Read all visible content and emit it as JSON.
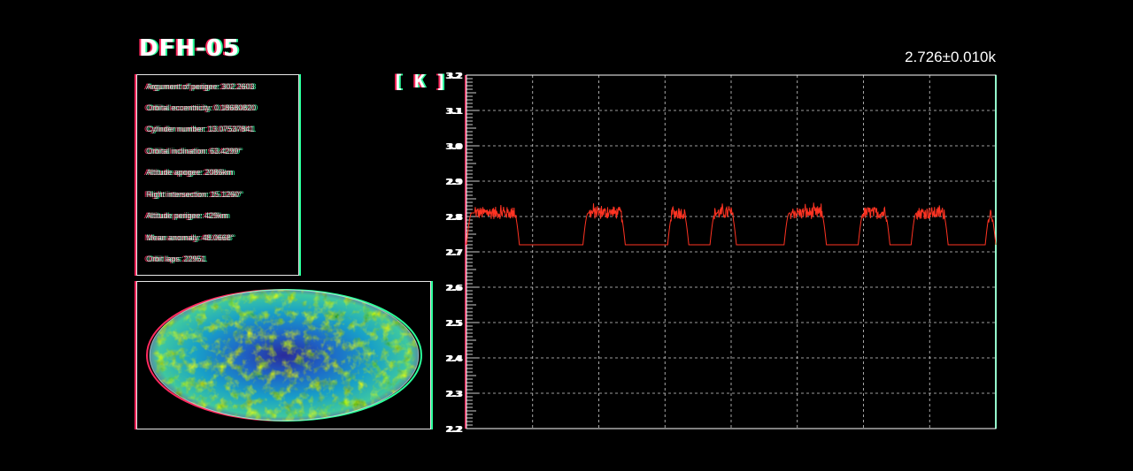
{
  "title": "DFH-05",
  "orbit_info": [
    "Argument of perigee: 302.2603",
    "Orbital eccentricity: 0.18680820",
    "Cylinder number: 13.07537841",
    "Orbital inclination: 63.4299°",
    "Altitude apogee: 2086km",
    "Right intersection: 15.1260°",
    "Altitude perigee: 429km",
    "Mean anomaly: 48.0668°",
    "Orbit laps: 22951"
  ],
  "unit_label": "[ K ]",
  "readout": "2.726±0.010k",
  "colors": {
    "line": "#ff3322",
    "grid": "#cfcfcf",
    "glitch_red": "#ff2a5f",
    "glitch_green": "#2aff9a"
  },
  "icons": {
    "sky_map": "cmb-mollweide-map"
  },
  "chart_data": {
    "type": "line",
    "title": "",
    "xlabel": "",
    "ylabel": "",
    "ylim": [
      2.2,
      3.2
    ],
    "yticks": [
      "3.2",
      "3.1",
      "3.0",
      "2.9",
      "2.8",
      "2.7",
      "2.6",
      "2.5",
      "2.4",
      "2.3",
      "2.2"
    ],
    "grid": true,
    "xlim": [
      0,
      100
    ],
    "baseline": 2.72,
    "peak": 2.81,
    "pulses": [
      [
        0,
        10
      ],
      [
        22,
        30
      ],
      [
        38,
        42
      ],
      [
        46,
        51
      ],
      [
        60,
        68
      ],
      [
        74,
        80
      ],
      [
        84,
        91
      ],
      [
        98,
        100
      ]
    ]
  }
}
